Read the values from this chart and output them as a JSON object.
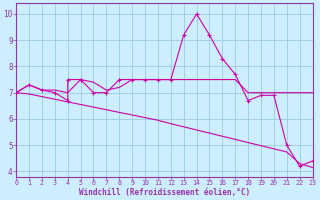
{
  "xlabel": "Windchill (Refroidissement éolien,°C)",
  "background_color": "#cceeff",
  "grid_color": "#99ccdd",
  "line_color": "#cc00aa",
  "spine_color": "#9933aa",
  "tick_color": "#9933aa",
  "label_color": "#9933aa",
  "x_ticks": [
    0,
    1,
    2,
    3,
    4,
    5,
    6,
    7,
    8,
    9,
    10,
    11,
    12,
    13,
    14,
    15,
    16,
    17,
    18,
    19,
    20,
    21,
    22,
    23
  ],
  "ylim": [
    3.8,
    10.4
  ],
  "xlim": [
    0,
    23
  ],
  "yticks": [
    4,
    5,
    6,
    7,
    8,
    9,
    10
  ],
  "line1_x": [
    0,
    1,
    2,
    3,
    4,
    4,
    5,
    5,
    6,
    7,
    8,
    9,
    10,
    11,
    12,
    13,
    14,
    15,
    16,
    17,
    18,
    19,
    20,
    21,
    22,
    23
  ],
  "line1_y": [
    7.0,
    7.3,
    7.1,
    7.0,
    6.7,
    7.5,
    7.5,
    7.5,
    7.0,
    7.0,
    7.5,
    7.5,
    7.5,
    7.5,
    7.5,
    9.2,
    10.0,
    9.2,
    8.3,
    7.7,
    6.7,
    6.9,
    6.9,
    5.0,
    4.2,
    4.4
  ],
  "line2_x": [
    0,
    1,
    2,
    3,
    4,
    5,
    6,
    7,
    8,
    9,
    10,
    11,
    12,
    13,
    14,
    15,
    16,
    17,
    18,
    19,
    20,
    21,
    22,
    23
  ],
  "line2_y": [
    7.0,
    7.3,
    7.1,
    7.1,
    7.0,
    7.5,
    7.4,
    7.1,
    7.2,
    7.5,
    7.5,
    7.5,
    7.5,
    7.5,
    7.5,
    7.5,
    7.5,
    7.5,
    7.0,
    7.0,
    7.0,
    7.0,
    7.0,
    7.0
  ],
  "line3_x": [
    0,
    1,
    2,
    3,
    4,
    5,
    6,
    7,
    8,
    9,
    10,
    11,
    12,
    13,
    14,
    15,
    16,
    17,
    18,
    19,
    20,
    21,
    22,
    23
  ],
  "line3_y": [
    7.0,
    6.95,
    6.85,
    6.75,
    6.65,
    6.55,
    6.45,
    6.35,
    6.25,
    6.15,
    6.05,
    5.95,
    5.82,
    5.7,
    5.58,
    5.46,
    5.34,
    5.22,
    5.1,
    4.98,
    4.86,
    4.74,
    4.3,
    4.15
  ]
}
